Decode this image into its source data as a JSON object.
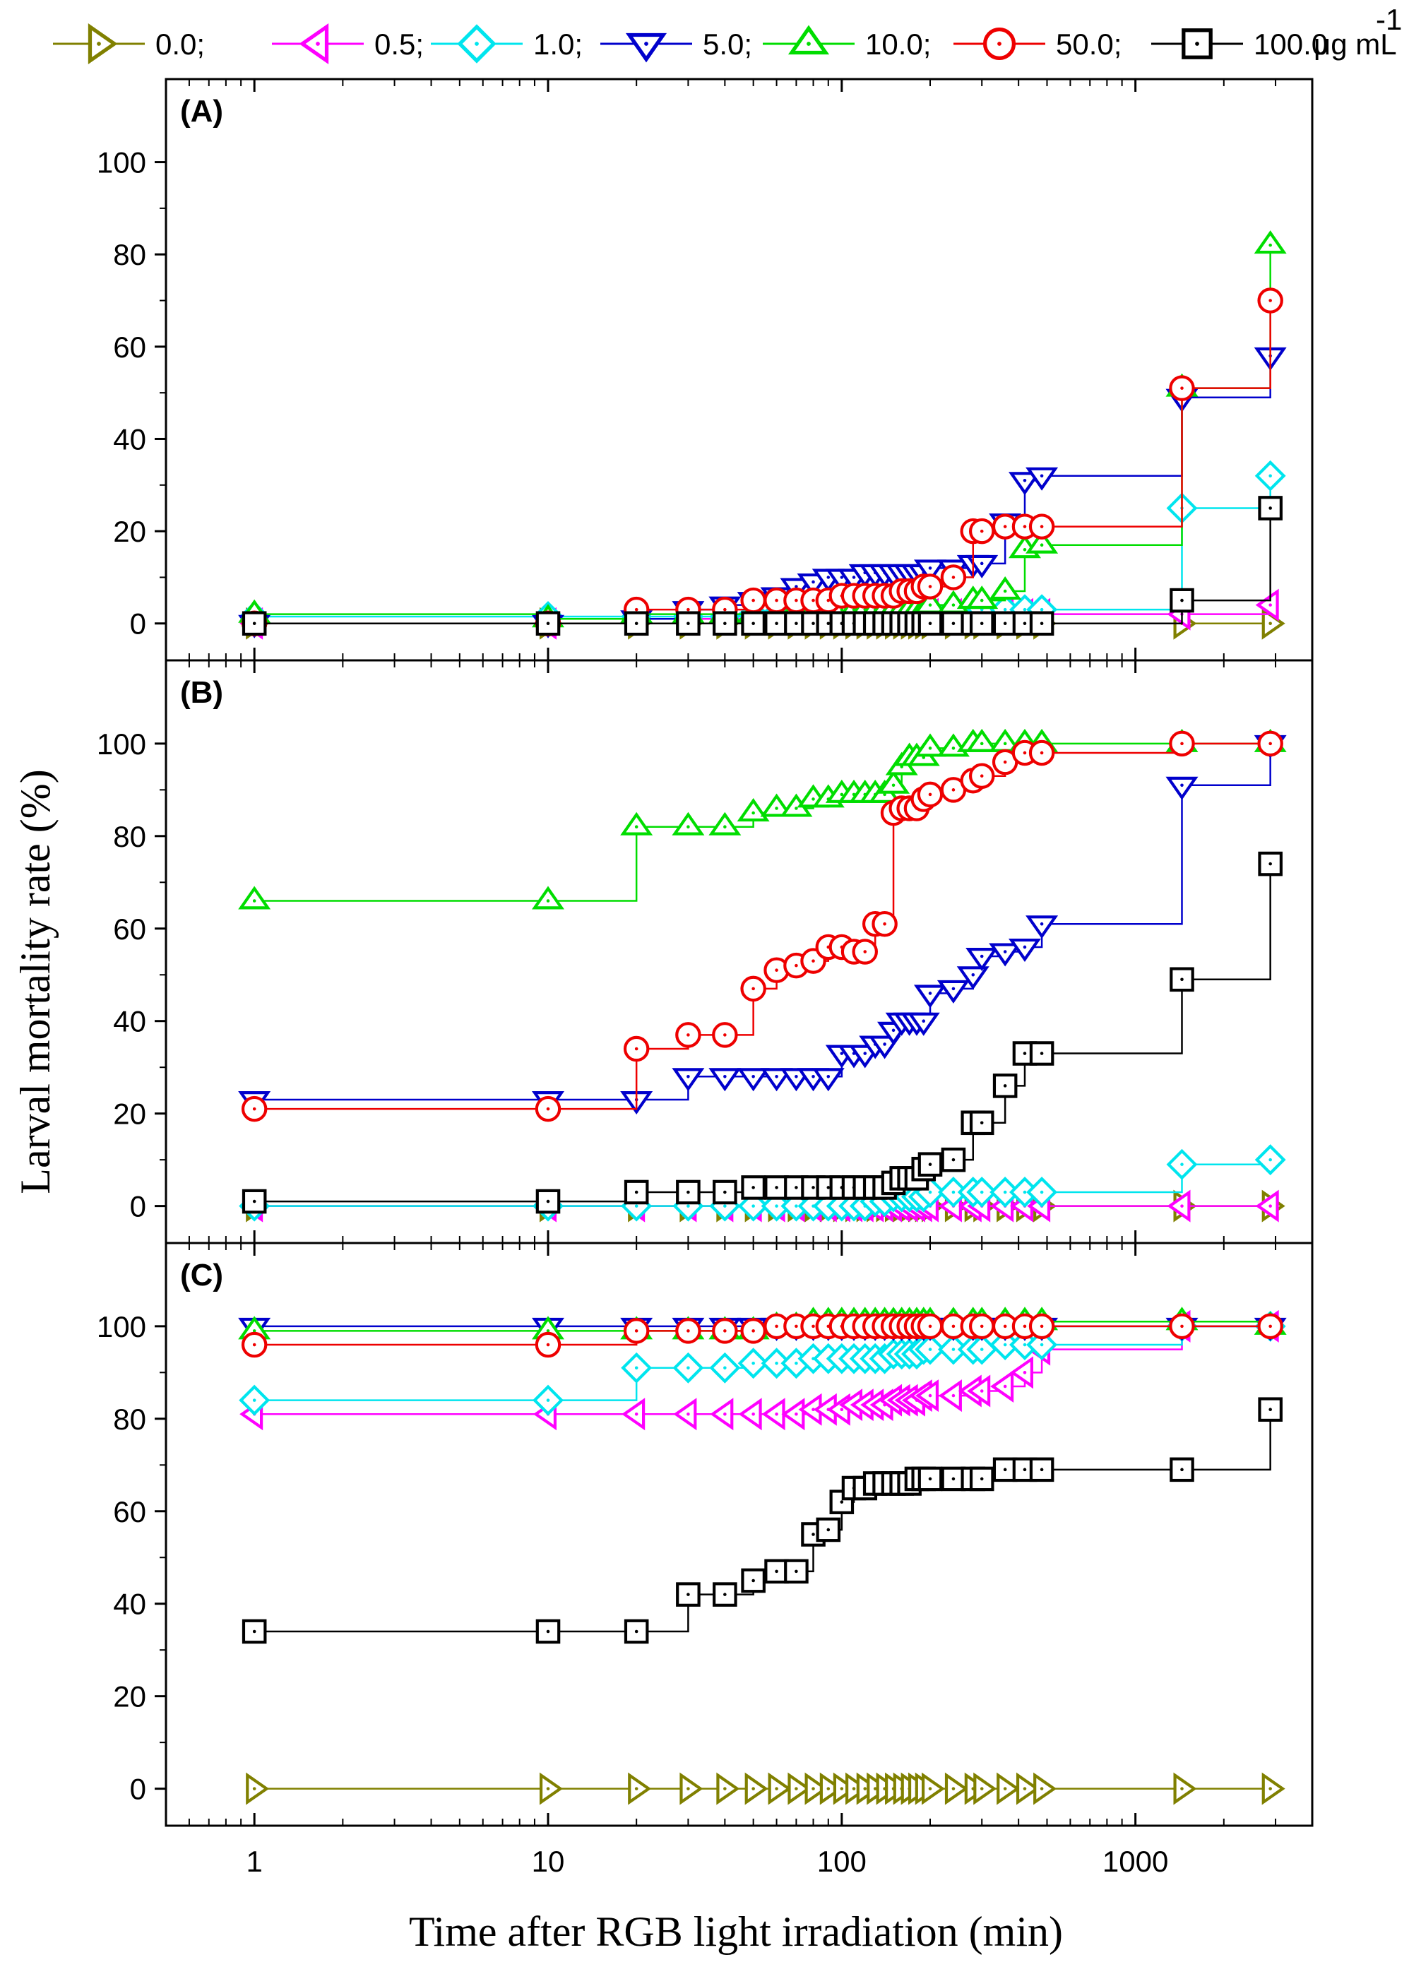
{
  "chart_data": {
    "type": "scatter",
    "xlabel": "Time after RGB light irradiation (min)",
    "ylabel": "Larval mortality rate (%)",
    "x_scale": "log",
    "xlim": [
      0.5,
      4000
    ],
    "ylim": [
      -8,
      118
    ],
    "x_ticks": [
      1,
      10,
      100,
      1000
    ],
    "x_tick_labels": [
      "1",
      "10",
      "100",
      "1000"
    ],
    "y_ticks": [
      0,
      20,
      40,
      60,
      80,
      100
    ],
    "y_tick_labels": [
      "0",
      "20",
      "40",
      "60",
      "80",
      "100"
    ],
    "legend": {
      "position": "top",
      "entries": [
        "0.0;",
        "0.5;",
        "1.0;",
        "5.0;",
        "10.0;",
        "50.0;",
        "100.0"
      ],
      "unit_label": "μg mL",
      "unit_superscript": "-1"
    },
    "series_style": [
      {
        "color": "#808000",
        "marker": "triangle-right"
      },
      {
        "color": "#ff00ff",
        "marker": "triangle-left"
      },
      {
        "color": "#00e5ee",
        "marker": "diamond"
      },
      {
        "color": "#0000cc",
        "marker": "triangle-down"
      },
      {
        "color": "#00dd00",
        "marker": "triangle-up"
      },
      {
        "color": "#ee0000",
        "marker": "circle"
      },
      {
        "color": "#000000",
        "marker": "square"
      }
    ],
    "x": [
      1,
      10,
      20,
      30,
      40,
      50,
      60,
      70,
      80,
      90,
      100,
      110,
      120,
      130,
      140,
      150,
      160,
      170,
      180,
      190,
      200,
      240,
      280,
      300,
      360,
      420,
      480,
      1440,
      2880
    ],
    "panels": [
      {
        "label": "(A)",
        "series": [
          {
            "values": [
              0,
              0,
              0,
              0,
              0,
              0,
              0,
              0,
              0,
              0,
              0,
              0,
              0,
              0,
              0,
              0,
              0,
              0,
              0,
              0,
              0,
              0,
              0,
              0,
              0,
              0,
              0,
              0,
              0
            ]
          },
          {
            "values": [
              0,
              0,
              1,
              1,
              1,
              1,
              1,
              1,
              1,
              1,
              1,
              1,
              1,
              1,
              1,
              1,
              1,
              1,
              1,
              1,
              2,
              2,
              2,
              2,
              2,
              2,
              2,
              2,
              4
            ]
          },
          {
            "values": [
              1.5,
              1.5,
              1.5,
              1.5,
              1.5,
              2,
              2,
              2,
              2,
              2,
              2,
              3,
              3,
              3,
              3,
              3,
              3,
              3,
              3,
              3,
              3,
              3,
              3,
              3,
              3,
              3,
              3,
              25,
              32
            ]
          },
          {
            "values": [
              0,
              0,
              1,
              3,
              4,
              5,
              6,
              8,
              9,
              10,
              10,
              10,
              11,
              11,
              11,
              11,
              11,
              11,
              11,
              11,
              12,
              12,
              13,
              13,
              22,
              31,
              32,
              49,
              58
            ]
          },
          {
            "values": [
              2,
              1,
              2,
              2,
              2,
              2,
              2,
              3,
              3,
              3,
              3,
              3,
              3,
              3,
              3,
              3,
              3,
              3,
              3,
              3,
              4,
              4,
              5,
              5,
              7,
              16,
              17,
              51,
              82
            ]
          },
          {
            "values": [
              0,
              0,
              3,
              3,
              3,
              5,
              5,
              5,
              5,
              5,
              6,
              6,
              6,
              6,
              6,
              6,
              7,
              7,
              7,
              8,
              8,
              10,
              20,
              20,
              21,
              21,
              21,
              51,
              70
            ]
          },
          {
            "values": [
              0,
              0,
              0,
              0,
              0,
              0,
              0,
              0,
              0,
              0,
              0,
              0,
              0,
              0,
              0,
              0,
              0,
              0,
              0,
              0,
              0,
              0,
              0,
              0,
              0,
              0,
              0,
              5,
              25
            ]
          }
        ]
      },
      {
        "label": "(B)",
        "series": [
          {
            "values": [
              0,
              0,
              0,
              0,
              0,
              0,
              0,
              0,
              0,
              0,
              0,
              0,
              0,
              0,
              0,
              0,
              0,
              0,
              0,
              0,
              0,
              0,
              0,
              0,
              0,
              0,
              0,
              0,
              0
            ]
          },
          {
            "values": [
              0,
              0,
              0,
              0,
              0,
              0,
              0,
              0,
              0,
              0,
              0,
              0,
              0,
              0,
              0,
              0,
              0,
              0,
              0,
              0,
              0,
              0,
              0,
              0,
              0,
              0,
              0,
              0,
              0
            ]
          },
          {
            "values": [
              0,
              0,
              0,
              0,
              0,
              0,
              0,
              0,
              0,
              0,
              0,
              0,
              0,
              1,
              1,
              2,
              2,
              2,
              2,
              2,
              3,
              3,
              3,
              3,
              3,
              3,
              3,
              9,
              10
            ]
          },
          {
            "values": [
              23,
              23,
              23,
              28,
              28,
              28,
              28,
              28,
              28,
              28,
              33,
              33,
              33,
              35,
              35,
              38,
              40,
              40,
              40,
              40,
              46,
              47,
              50,
              54,
              55,
              56,
              61,
              91,
              100
            ]
          },
          {
            "values": [
              66,
              66,
              82,
              82,
              82,
              85,
              86,
              86,
              88,
              88,
              89,
              89,
              89,
              89,
              89,
              91,
              95,
              97,
              97,
              97,
              99,
              99,
              100,
              100,
              100,
              100,
              100,
              100,
              100
            ]
          },
          {
            "values": [
              21,
              21,
              34,
              37,
              37,
              47,
              51,
              52,
              53,
              56,
              56,
              55,
              55,
              61,
              61,
              85,
              86,
              86,
              86,
              88,
              89,
              90,
              92,
              93,
              96,
              98,
              98,
              100,
              100
            ]
          },
          {
            "values": [
              1,
              1,
              3,
              3,
              3,
              4,
              4,
              4,
              4,
              4,
              4,
              4,
              4,
              4,
              4,
              5,
              6,
              6,
              6,
              8,
              9,
              10,
              18,
              18,
              26,
              33,
              33,
              49,
              74
            ]
          }
        ]
      },
      {
        "label": "(C)",
        "series": [
          {
            "values": [
              0,
              0,
              0,
              0,
              0,
              0,
              0,
              0,
              0,
              0,
              0,
              0,
              0,
              0,
              0,
              0,
              0,
              0,
              0,
              0,
              0,
              0,
              0,
              0,
              0,
              0,
              0,
              0,
              0
            ]
          },
          {
            "values": [
              81,
              81,
              81,
              81,
              81,
              81,
              81,
              81,
              82,
              82,
              82,
              83,
              83,
              83,
              83,
              84,
              84,
              84,
              84,
              85,
              85,
              85,
              86,
              86,
              87,
              90,
              95,
              100,
              100
            ]
          },
          {
            "values": [
              84,
              84,
              91,
              91,
              91,
              92,
              92,
              92,
              93,
              93,
              93,
              93,
              93,
              93,
              93,
              94,
              94,
              94,
              94,
              95,
              95,
              95,
              95,
              95,
              96,
              96,
              96,
              100,
              100
            ]
          },
          {
            "values": [
              100,
              100,
              100,
              100,
              100,
              100,
              100,
              100,
              100,
              100,
              100,
              100,
              100,
              100,
              100,
              100,
              100,
              100,
              100,
              100,
              100,
              100,
              100,
              100,
              100,
              100,
              100,
              100,
              100
            ]
          },
          {
            "values": [
              99,
              99,
              99,
              99,
              99,
              99,
              100,
              100,
              101,
              101,
              101,
              101,
              101,
              101,
              101,
              101,
              101,
              101,
              101,
              101,
              101,
              101,
              101,
              101,
              101,
              101,
              101,
              101,
              100
            ]
          },
          {
            "values": [
              96,
              96,
              99,
              99,
              99,
              99,
              100,
              100,
              100,
              100,
              100,
              100,
              100,
              100,
              100,
              100,
              100,
              100,
              100,
              100,
              100,
              100,
              100,
              100,
              100,
              100,
              100,
              100,
              100
            ]
          },
          {
            "values": [
              34,
              34,
              34,
              42,
              42,
              45,
              47,
              47,
              55,
              56,
              62,
              65,
              65,
              66,
              66,
              66,
              66,
              66,
              67,
              67,
              67,
              67,
              67,
              67,
              69,
              69,
              69,
              69,
              82
            ]
          }
        ]
      }
    ]
  }
}
